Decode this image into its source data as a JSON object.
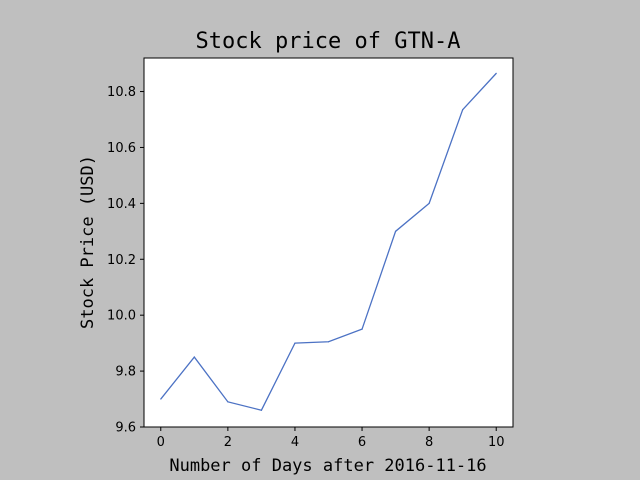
{
  "chart_data": {
    "type": "line",
    "title": "Stock price of GTN-A",
    "xlabel": "Number of Days after 2016-11-16",
    "ylabel": "Stock Price (USD)",
    "xlim": [
      -0.5,
      10.5
    ],
    "ylim": [
      9.6,
      10.92
    ],
    "x_ticks": [
      0,
      2,
      4,
      6,
      8,
      10
    ],
    "x_tick_labels": [
      "0",
      "2",
      "4",
      "6",
      "8",
      "10"
    ],
    "y_ticks": [
      9.6,
      9.8,
      10.0,
      10.2,
      10.4,
      10.6,
      10.8
    ],
    "y_tick_labels": [
      "9.6",
      "9.8",
      "10.0",
      "10.2",
      "10.4",
      "10.6",
      "10.8"
    ],
    "grid": false,
    "legend": "none",
    "series": [
      {
        "color": "#4c72c4",
        "x": [
          0,
          1,
          2,
          3,
          4,
          5,
          6,
          7,
          8,
          9,
          10
        ],
        "y": [
          9.7,
          9.85,
          9.69,
          9.66,
          9.9,
          9.905,
          9.95,
          10.3,
          10.4,
          10.735,
          10.865
        ]
      }
    ],
    "background_color": "#bfbfbf",
    "plot_background_color": "#ffffff"
  }
}
